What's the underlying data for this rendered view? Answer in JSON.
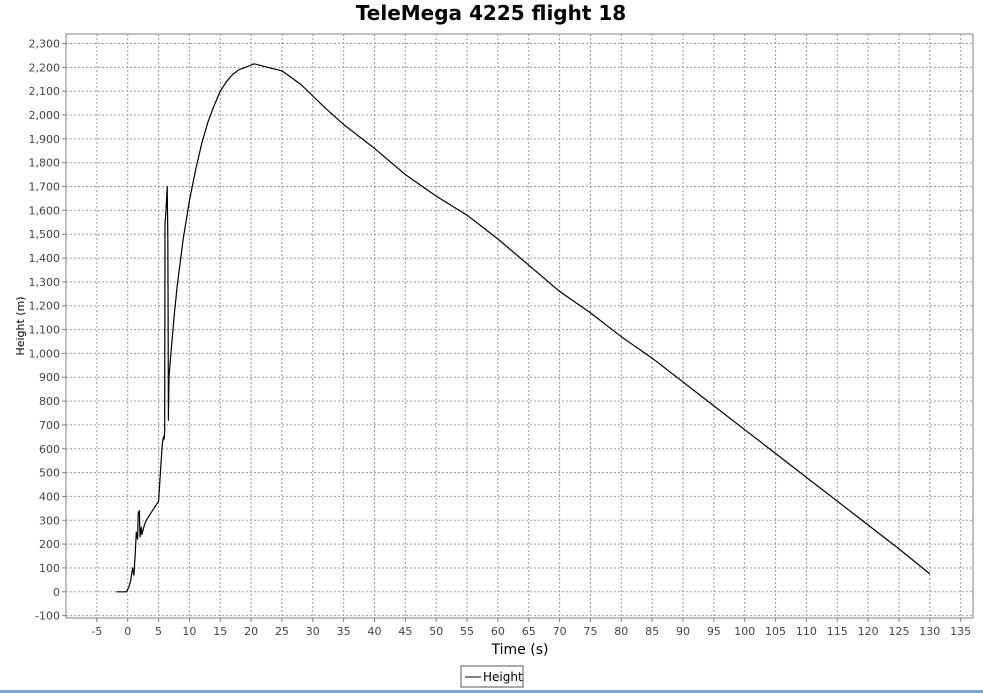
{
  "chart_data": {
    "type": "line",
    "title": "TeleMega 4225 flight 18",
    "xlabel": "Time (s)",
    "ylabel": "Height (m)",
    "xlim": [
      -10,
      137
    ],
    "ylim": [
      -110,
      2340
    ],
    "xticks": [
      -5,
      0,
      5,
      10,
      15,
      20,
      25,
      30,
      35,
      40,
      45,
      50,
      55,
      60,
      65,
      70,
      75,
      80,
      85,
      90,
      95,
      100,
      105,
      110,
      115,
      120,
      125,
      130,
      135
    ],
    "yticks": [
      -100,
      0,
      100,
      200,
      300,
      400,
      500,
      600,
      700,
      800,
      900,
      1000,
      1100,
      1200,
      1300,
      1400,
      1500,
      1600,
      1700,
      1800,
      1900,
      2000,
      2100,
      2200,
      2300
    ],
    "ytick_labels": [
      "-100",
      "0",
      "100",
      "200",
      "300",
      "400",
      "500",
      "600",
      "700",
      "800",
      "900",
      "1,000",
      "1,100",
      "1,200",
      "1,300",
      "1,400",
      "1,500",
      "1,600",
      "1,700",
      "1,800",
      "1,900",
      "2,000",
      "2,100",
      "2,200",
      "2,300"
    ],
    "grid": true,
    "legend": {
      "position": "bottom-center",
      "entries": [
        "Height"
      ]
    },
    "series": [
      {
        "name": "Height",
        "color": "#000000",
        "x": [
          -1.8,
          -0.2,
          0.2,
          0.5,
          0.8,
          1.0,
          1.2,
          1.4,
          1.6,
          1.7,
          1.9,
          2.0,
          2.1,
          2.2,
          2.3,
          2.5,
          2.7,
          3.0,
          4.0,
          5.0,
          5.3,
          5.6,
          5.8,
          5.9,
          6.0,
          6.05,
          6.1,
          6.2,
          6.4,
          6.5,
          6.55,
          6.6,
          6.7,
          7.0,
          7.5,
          8.0,
          9.0,
          10.0,
          11.0,
          12.0,
          13.0,
          14.0,
          15.0,
          16.0,
          17.0,
          18.0,
          19.0,
          20.0,
          20.5,
          22.0,
          25.0,
          28.0,
          30.0,
          32.0,
          35.0,
          40.0,
          45.0,
          50.0,
          55.0,
          60.0,
          65.0,
          70.0,
          75.0,
          80.0,
          85.0,
          90.0,
          95.0,
          100.0,
          105.0,
          110.0,
          115.0,
          120.0,
          125.0,
          130.0
        ],
        "y": [
          0,
          0,
          20,
          50,
          100,
          70,
          150,
          250,
          220,
          330,
          340,
          230,
          260,
          270,
          240,
          260,
          280,
          300,
          340,
          380,
          500,
          620,
          650,
          640,
          680,
          1550,
          1560,
          1600,
          1700,
          1500,
          1200,
          720,
          900,
          1000,
          1150,
          1280,
          1480,
          1640,
          1770,
          1880,
          1970,
          2040,
          2100,
          2140,
          2170,
          2190,
          2200,
          2210,
          2215,
          2205,
          2185,
          2130,
          2080,
          2030,
          1960,
          1860,
          1750,
          1660,
          1580,
          1480,
          1370,
          1260,
          1170,
          1070,
          980,
          880,
          780,
          680,
          580,
          480,
          380,
          280,
          180,
          75
        ]
      }
    ]
  }
}
